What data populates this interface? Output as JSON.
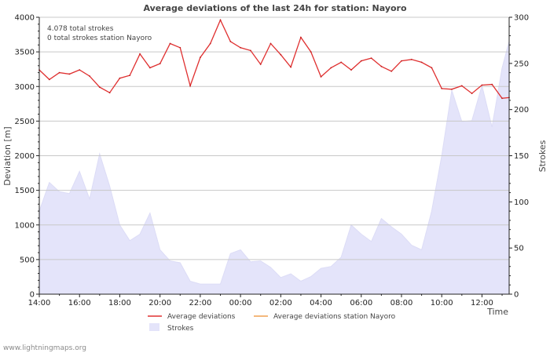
{
  "chart_data": {
    "type": "line",
    "title": "Average deviations of the last 24h for station: Nayoro",
    "annotations": [
      "4.078 total strokes",
      "0 total strokes station Nayoro"
    ],
    "xlabel": "Time",
    "ylabel": "Deviation  [m]",
    "ylabel_right": "Strokes",
    "xlim_hours": [
      14,
      37.35
    ],
    "ylim": [
      0,
      4000
    ],
    "ylim_right": [
      0,
      300
    ],
    "x_ticks": [
      {
        "hour": 14,
        "label": "14:00"
      },
      {
        "hour": 16,
        "label": "16:00"
      },
      {
        "hour": 18,
        "label": "18:00"
      },
      {
        "hour": 20,
        "label": "20:00"
      },
      {
        "hour": 22,
        "label": "22:00"
      },
      {
        "hour": 24,
        "label": "00:00"
      },
      {
        "hour": 26,
        "label": "02:00"
      },
      {
        "hour": 28,
        "label": "04:00"
      },
      {
        "hour": 30,
        "label": "06:00"
      },
      {
        "hour": 32,
        "label": "08:00"
      },
      {
        "hour": 34,
        "label": "10:00"
      },
      {
        "hour": 36,
        "label": "12:00"
      }
    ],
    "y_ticks": [
      "0",
      "500",
      "1000",
      "1500",
      "2000",
      "2500",
      "3000",
      "3500",
      "4000"
    ],
    "y_tick_values": [
      0,
      500,
      1000,
      1500,
      2000,
      2500,
      3000,
      3500,
      4000
    ],
    "y_ticks_right": [
      "0",
      "50",
      "100",
      "150",
      "200",
      "250",
      "300"
    ],
    "y_tick_values_right": [
      0,
      50,
      100,
      150,
      200,
      250,
      300
    ],
    "legend": [
      {
        "label": "Average deviations",
        "kind": "line",
        "color": "#e03030"
      },
      {
        "label": "Average deviations station Nayoro",
        "kind": "line",
        "color": "#f0a050"
      },
      {
        "label": "Strokes",
        "kind": "area",
        "color": "#e4e4fa"
      }
    ],
    "series": [
      {
        "name": "Average deviations",
        "color": "#e03030",
        "x": [
          14.0,
          14.5,
          15.0,
          15.5,
          16.0,
          16.5,
          17.0,
          17.5,
          18.0,
          18.5,
          19.0,
          19.5,
          20.0,
          20.5,
          21.0,
          21.5,
          22.0,
          22.5,
          23.0,
          23.5,
          24.0,
          24.5,
          25.0,
          25.5,
          26.0,
          26.5,
          27.0,
          27.5,
          28.0,
          28.5,
          29.0,
          29.5,
          30.0,
          30.5,
          31.0,
          31.5,
          32.0,
          32.5,
          33.0,
          33.5,
          34.0,
          34.5,
          35.0,
          35.5,
          36.0,
          36.5,
          37.0,
          37.35
        ],
        "values": [
          3240,
          3100,
          3200,
          3180,
          3240,
          3150,
          2990,
          2910,
          3120,
          3160,
          3470,
          3270,
          3330,
          3620,
          3560,
          3010,
          3420,
          3620,
          3960,
          3650,
          3560,
          3520,
          3320,
          3620,
          3460,
          3280,
          3710,
          3500,
          3140,
          3270,
          3350,
          3240,
          3370,
          3410,
          3290,
          3220,
          3370,
          3390,
          3350,
          3270,
          2970,
          2960,
          3010,
          2900,
          3020,
          3030,
          2830,
          2840
        ]
      },
      {
        "name": "Average deviations station Nayoro",
        "color": "#f0a050",
        "x": [],
        "values": []
      },
      {
        "name": "Strokes",
        "color": "#e4e4fa",
        "x": [
          14.0,
          14.5,
          15.0,
          15.5,
          16.0,
          16.5,
          17.0,
          17.5,
          18.0,
          18.5,
          19.0,
          19.5,
          20.0,
          20.5,
          21.0,
          21.5,
          22.0,
          22.5,
          23.0,
          23.5,
          24.0,
          24.5,
          25.0,
          25.5,
          26.0,
          26.5,
          27.0,
          27.5,
          28.0,
          28.5,
          29.0,
          29.5,
          30.0,
          30.5,
          31.0,
          31.5,
          32.0,
          32.5,
          33.0,
          33.5,
          34.0,
          34.5,
          35.0,
          35.5,
          36.0,
          36.5,
          37.0,
          37.35
        ],
        "values": [
          90,
          121,
          111,
          109,
          133,
          103,
          152,
          117,
          75,
          58,
          65,
          88,
          48,
          36,
          34,
          14,
          11,
          11,
          11,
          44,
          48,
          35,
          36,
          29,
          18,
          22,
          14,
          19,
          28,
          30,
          40,
          75,
          65,
          57,
          82,
          73,
          65,
          53,
          48,
          90,
          150,
          221,
          187,
          188,
          226,
          181,
          245,
          274
        ]
      }
    ]
  },
  "footer": {
    "credit": "www.lightningmaps.org"
  },
  "colors": {
    "grid": "#c8c8c8",
    "axis": "#222222",
    "strokes_fill": "#e4e4fa",
    "strokes_edge": "#dcdcf6",
    "deviation_line": "#e03030",
    "station_line": "#f0a050"
  }
}
